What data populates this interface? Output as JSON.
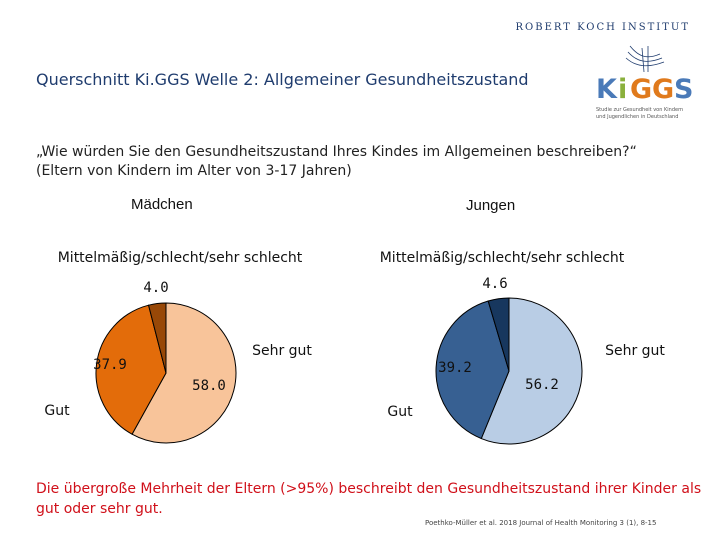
{
  "header": {
    "institute": "ROBERT KOCH INSTITUT",
    "title": "Querschnitt Ki.GGS Welle 2: Allgemeiner Gesundheitszustand",
    "logo": {
      "wordmark": "KiGGS",
      "subtitle": "Studie zur Gesundheit von Kindern und Jugendlichen in Deutschland",
      "colors": {
        "k": "#4a7ab8",
        "i": "#8ab03c",
        "g": "#e07a1c",
        "s": "#4a7ab8"
      }
    }
  },
  "question": {
    "line1": "„Wie würden Sie den Gesundheitszustand Ihres Kindes im Allgemeinen beschreiben?“",
    "line2": "(Eltern von Kindern im Alter von 3-17 Jahren)"
  },
  "chart_data": [
    {
      "type": "pie",
      "title": "Mädchen",
      "categories": [
        "Sehr gut",
        "Gut",
        "Mittelmäßig/schlecht/sehr schlecht"
      ],
      "values": [
        58.0,
        37.9,
        4.0
      ],
      "value_labels": [
        "58.0",
        "37.9",
        "4.0"
      ],
      "colors": [
        "#f8c49a",
        "#e36c0a",
        "#984807"
      ],
      "start": "12 o'clock, clockwise"
    },
    {
      "type": "pie",
      "title": "Jungen",
      "categories": [
        "Sehr gut",
        "Gut",
        "Mittelmäßig/schlecht/sehr schlecht"
      ],
      "values": [
        56.2,
        39.2,
        4.6
      ],
      "value_labels": [
        "56.2",
        "39.2",
        "4.6"
      ],
      "colors": [
        "#b9cde5",
        "#376092",
        "#17375e"
      ],
      "start": "12 o'clock, clockwise"
    }
  ],
  "footer": {
    "conclusion": "Die übergroße Mehrheit der Eltern (>95%) beschreibt den Gesundheitszustand ihrer Kinder als gut oder sehr gut.",
    "citation": "Poethko-Müller et al. 2018 Journal of Health Monitoring 3 (1), 8-15"
  }
}
